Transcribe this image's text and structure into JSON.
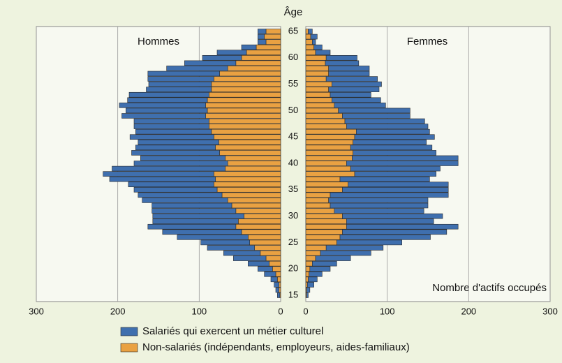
{
  "chart_data": {
    "type": "pyramid",
    "ylabel": "Âge",
    "left_title": "Hommes",
    "right_title": "Femmes",
    "xlabel": "Nombre d'actifs occupés",
    "categories": [
      15,
      null,
      null,
      null,
      null,
      20,
      null,
      null,
      null,
      null,
      25,
      null,
      null,
      null,
      null,
      30,
      null,
      null,
      null,
      null,
      35,
      null,
      null,
      null,
      null,
      40,
      null,
      null,
      null,
      null,
      45,
      null,
      null,
      null,
      null,
      50,
      null,
      null,
      null,
      null,
      55,
      null,
      null,
      null,
      null,
      60,
      null,
      null,
      null,
      null,
      65
    ],
    "xlim": [
      0,
      300
    ],
    "xticks": [
      0,
      100,
      200,
      300
    ],
    "grid": true,
    "series": [
      {
        "name": "Non-salariés (indépendants, employeurs, aides-familiaux)",
        "color": "#e9a142",
        "hommes": [
          1,
          2,
          2,
          4,
          6,
          10,
          14,
          18,
          25,
          32,
          38,
          40,
          48,
          55,
          52,
          45,
          55,
          60,
          65,
          72,
          78,
          82,
          80,
          82,
          68,
          65,
          68,
          75,
          80,
          76,
          82,
          85,
          88,
          88,
          92,
          90,
          92,
          90,
          88,
          85,
          85,
          82,
          75,
          65,
          55,
          48,
          42,
          30,
          18,
          20,
          18
        ],
        "femmes": [
          1,
          1,
          2,
          3,
          4,
          5,
          8,
          12,
          18,
          25,
          38,
          42,
          45,
          50,
          50,
          45,
          35,
          30,
          28,
          30,
          45,
          52,
          42,
          60,
          55,
          50,
          57,
          58,
          55,
          58,
          60,
          62,
          50,
          48,
          45,
          40,
          35,
          32,
          30,
          28,
          32,
          25,
          28,
          28,
          24,
          25,
          12,
          10,
          8,
          6,
          3
        ]
      },
      {
        "name": "Salariés qui exercent un métier culturel",
        "color": "#3f6fae",
        "hommes": [
          3,
          4,
          6,
          8,
          14,
          18,
          26,
          40,
          45,
          58,
          60,
          87,
          97,
          108,
          105,
          112,
          103,
          98,
          105,
          103,
          102,
          105,
          130,
          136,
          139,
          115,
          104,
          108,
          98,
          99,
          103,
          93,
          92,
          92,
          103,
          100,
          106,
          98,
          98,
          80,
          77,
          81,
          88,
          75,
          63,
          48,
          36,
          18,
          10,
          8,
          10
        ],
        "femmes": [
          2,
          4,
          8,
          11,
          16,
          25,
          30,
          43,
          62,
          70,
          80,
          111,
          128,
          137,
          107,
          123,
          110,
          120,
          122,
          145,
          130,
          123,
          110,
          100,
          110,
          137,
          130,
          102,
          100,
          90,
          98,
          90,
          100,
          98,
          83,
          88,
          63,
          60,
          50,
          62,
          61,
          63,
          50,
          50,
          41,
          38,
          18,
          10,
          4,
          8,
          5
        ]
      }
    ]
  }
}
